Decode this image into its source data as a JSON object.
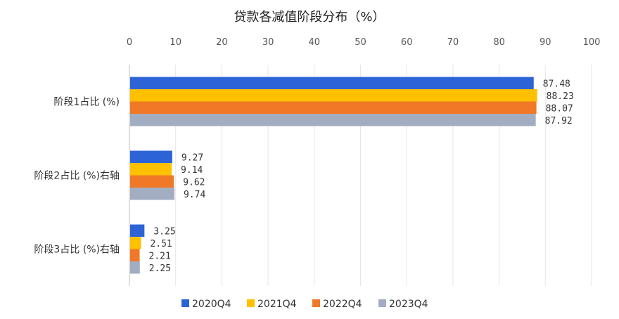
{
  "chart_data": {
    "type": "bar",
    "orientation": "horizontal",
    "title": "贷款各减值阶段分布（%）",
    "categories": [
      "阶段1占比 (%)",
      "阶段2占比 (%)右轴",
      "阶段3占比 (%)右轴"
    ],
    "series": [
      {
        "name": "2020Q4",
        "color": "#2C63D6",
        "values": [
          87.48,
          9.27,
          3.25
        ]
      },
      {
        "name": "2021Q4",
        "color": "#FFC000",
        "values": [
          88.23,
          9.14,
          2.51
        ]
      },
      {
        "name": "2022Q4",
        "color": "#F07826",
        "values": [
          88.07,
          9.62,
          2.21
        ]
      },
      {
        "name": "2023Q4",
        "color": "#A3ADC1",
        "values": [
          87.92,
          9.74,
          2.25
        ]
      }
    ],
    "xlim": [
      0,
      100
    ],
    "x_ticks": [
      "0",
      "10",
      "20",
      "30",
      "40",
      "50",
      "60",
      "70",
      "80",
      "90",
      "100"
    ],
    "axis_position": "top",
    "grid": true,
    "legend_position": "bottom"
  }
}
